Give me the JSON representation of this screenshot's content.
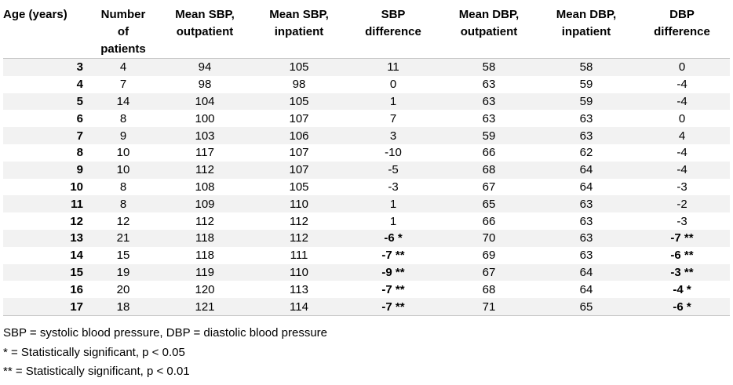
{
  "table": {
    "headers": [
      [
        "Age (years)"
      ],
      [
        "Number",
        "of",
        "patients"
      ],
      [
        "Mean SBP,",
        "outpatient"
      ],
      [
        "Mean SBP,",
        "inpatient"
      ],
      [
        "SBP",
        "difference"
      ],
      [
        "Mean DBP,",
        "outpatient"
      ],
      [
        "Mean DBP,",
        "inpatient"
      ],
      [
        "DBP",
        "difference"
      ]
    ],
    "rows": [
      {
        "age": "3",
        "n": "4",
        "sbp_out": "94",
        "sbp_in": "105",
        "sbp_diff": "11",
        "sbp_sig": false,
        "dbp_out": "58",
        "dbp_in": "58",
        "dbp_diff": "0",
        "dbp_sig": false
      },
      {
        "age": "4",
        "n": "7",
        "sbp_out": "98",
        "sbp_in": "98",
        "sbp_diff": "0",
        "sbp_sig": false,
        "dbp_out": "63",
        "dbp_in": "59",
        "dbp_diff": "-4",
        "dbp_sig": false
      },
      {
        "age": "5",
        "n": "14",
        "sbp_out": "104",
        "sbp_in": "105",
        "sbp_diff": "1",
        "sbp_sig": false,
        "dbp_out": "63",
        "dbp_in": "59",
        "dbp_diff": "-4",
        "dbp_sig": false
      },
      {
        "age": "6",
        "n": "8",
        "sbp_out": "100",
        "sbp_in": "107",
        "sbp_diff": "7",
        "sbp_sig": false,
        "dbp_out": "63",
        "dbp_in": "63",
        "dbp_diff": "0",
        "dbp_sig": false
      },
      {
        "age": "7",
        "n": "9",
        "sbp_out": "103",
        "sbp_in": "106",
        "sbp_diff": "3",
        "sbp_sig": false,
        "dbp_out": "59",
        "dbp_in": "63",
        "dbp_diff": "4",
        "dbp_sig": false
      },
      {
        "age": "8",
        "n": "10",
        "sbp_out": "117",
        "sbp_in": "107",
        "sbp_diff": "-10",
        "sbp_sig": false,
        "dbp_out": "66",
        "dbp_in": "62",
        "dbp_diff": "-4",
        "dbp_sig": false
      },
      {
        "age": "9",
        "n": "10",
        "sbp_out": "112",
        "sbp_in": "107",
        "sbp_diff": "-5",
        "sbp_sig": false,
        "dbp_out": "68",
        "dbp_in": "64",
        "dbp_diff": "-4",
        "dbp_sig": false
      },
      {
        "age": "10",
        "n": "8",
        "sbp_out": "108",
        "sbp_in": "105",
        "sbp_diff": "-3",
        "sbp_sig": false,
        "dbp_out": "67",
        "dbp_in": "64",
        "dbp_diff": "-3",
        "dbp_sig": false
      },
      {
        "age": "11",
        "n": "8",
        "sbp_out": "109",
        "sbp_in": "110",
        "sbp_diff": "1",
        "sbp_sig": false,
        "dbp_out": "65",
        "dbp_in": "63",
        "dbp_diff": "-2",
        "dbp_sig": false
      },
      {
        "age": "12",
        "n": "12",
        "sbp_out": "112",
        "sbp_in": "112",
        "sbp_diff": "1",
        "sbp_sig": false,
        "dbp_out": "66",
        "dbp_in": "63",
        "dbp_diff": "-3",
        "dbp_sig": false
      },
      {
        "age": "13",
        "n": "21",
        "sbp_out": "118",
        "sbp_in": "112",
        "sbp_diff": "-6 *",
        "sbp_sig": true,
        "dbp_out": "70",
        "dbp_in": "63",
        "dbp_diff": "-7 **",
        "dbp_sig": true
      },
      {
        "age": "14",
        "n": "15",
        "sbp_out": "118",
        "sbp_in": "111",
        "sbp_diff": "-7 **",
        "sbp_sig": true,
        "dbp_out": "69",
        "dbp_in": "63",
        "dbp_diff": "-6 **",
        "dbp_sig": true
      },
      {
        "age": "15",
        "n": "19",
        "sbp_out": "119",
        "sbp_in": "110",
        "sbp_diff": "-9 **",
        "sbp_sig": true,
        "dbp_out": "67",
        "dbp_in": "64",
        "dbp_diff": "-3 **",
        "dbp_sig": true
      },
      {
        "age": "16",
        "n": "20",
        "sbp_out": "120",
        "sbp_in": "113",
        "sbp_diff": "-7 **",
        "sbp_sig": true,
        "dbp_out": "68",
        "dbp_in": "64",
        "dbp_diff": "-4 *",
        "dbp_sig": true
      },
      {
        "age": "17",
        "n": "18",
        "sbp_out": "121",
        "sbp_in": "114",
        "sbp_diff": "-7 **",
        "sbp_sig": true,
        "dbp_out": "71",
        "dbp_in": "65",
        "dbp_diff": "-6 *",
        "dbp_sig": true
      }
    ]
  },
  "footnotes": [
    "SBP = systolic blood pressure, DBP = diastolic blood pressure",
    "* = Statistically significant, p < 0.05",
    "** = Statistically significant, p < 0.01"
  ]
}
